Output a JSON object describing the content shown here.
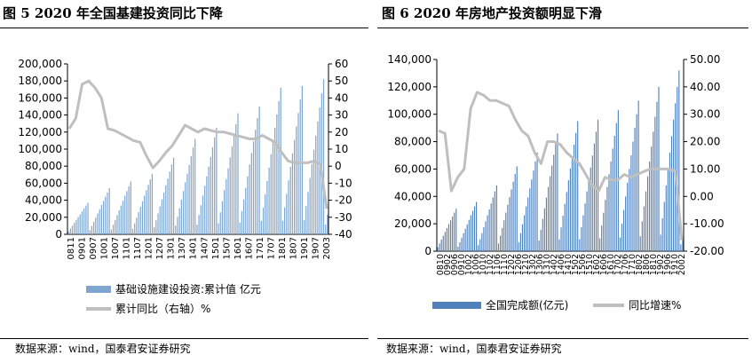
{
  "charts": {
    "left": {
      "title": "图 5 2020 年全国基建投资同比下降",
      "source": "数据来源：wind，国泰君安证券研究",
      "chart_data": {
        "type": "bar",
        "combo": "bar+line",
        "legend_position": "bottom-left",
        "grid": false,
        "y_left": {
          "ticks": [
            "200,000",
            "180,000",
            "160,000",
            "140,000",
            "120,000",
            "100,000",
            "80,000",
            "60,000",
            "40,000",
            "20,000",
            "0"
          ],
          "range": [
            0,
            200000
          ]
        },
        "y_right": {
          "ticks": [
            "60",
            "50",
            "40",
            "30",
            "20",
            "10",
            "0",
            "-10",
            "-20",
            "-30",
            "-40"
          ],
          "range": [
            -40,
            60
          ]
        },
        "x_ticks": [
          "0811",
          "0901",
          "0907",
          "1001",
          "1007",
          "1101",
          "1107",
          "1201",
          "1207",
          "1301",
          "1307",
          "1401",
          "1407",
          "1501",
          "1507",
          "1601",
          "1607",
          "1701",
          "1707",
          "1801",
          "1807",
          "1901",
          "1907",
          "2003"
        ],
        "series": [
          {
            "name": "基础设施建设投资:累计值 亿元",
            "kind": "bar",
            "axis": "left",
            "color": "#7EA6D0",
            "year_peaks": [
              37000,
              54000,
              62000,
              71000,
              90000,
              112000,
              125000,
              142000,
              150000,
              172000,
              174000,
              182000,
              23000
            ]
          },
          {
            "name": "累计同比（右轴）%",
            "kind": "line",
            "axis": "right",
            "color": "#BFBFBF",
            "values": [
              22,
              28,
              48,
              50,
              46,
              40,
              22,
              21,
              19,
              17,
              15,
              14,
              6,
              -1,
              3,
              8,
              12,
              18,
              24,
              22,
              20,
              22,
              21,
              20,
              20,
              19,
              18,
              17,
              16,
              16,
              18,
              16,
              14,
              8,
              3,
              2,
              2,
              2,
              3,
              1,
              -25
            ]
          }
        ]
      }
    },
    "right": {
      "title": "图 6   2020 年房地产投资额明显下滑",
      "source": "数据来源：wind，国泰君安证券研究",
      "chart_data": {
        "type": "bar",
        "combo": "bar+line",
        "legend_position": "bottom",
        "grid": false,
        "y_left": {
          "ticks": [
            "140,000",
            "120,000",
            "100,000",
            "80,000",
            "60,000",
            "40,000",
            "20,000",
            "0"
          ],
          "range": [
            0,
            140000
          ]
        },
        "y_right": {
          "ticks": [
            "50.00",
            "40.00",
            "30.00",
            "20.00",
            "10.00",
            "0.00",
            "-10.00",
            "-20.00"
          ],
          "range": [
            -20,
            50
          ]
        },
        "x_ticks": [
          "0810",
          "0902",
          "0906",
          "0910",
          "1002",
          "1006",
          "1010",
          "1102",
          "1106",
          "1110",
          "1202",
          "1206",
          "1210",
          "1302",
          "1306",
          "1310",
          "1402",
          "1406",
          "1410",
          "1502",
          "1506",
          "1510",
          "1602",
          "1606",
          "1610",
          "1702",
          "1706",
          "1710",
          "1802",
          "1806",
          "1810",
          "1902",
          "1906",
          "1910",
          "2002"
        ],
        "series": [
          {
            "name": "全国完成额(亿元)",
            "kind": "bar",
            "axis": "left",
            "color": "#4F81BD",
            "year_peaks": [
              31000,
              36000,
              48000,
              62000,
              72000,
              86000,
              95000,
              96000,
              103000,
              110000,
              120000,
              132000,
              10000
            ]
          },
          {
            "name": "同比增速%",
            "kind": "line",
            "axis": "right",
            "color": "#BFBFBF",
            "values": [
              24,
              23,
              2,
              7,
              10,
              32,
              38,
              37,
              35,
              35,
              34,
              33,
              28,
              24,
              22,
              16,
              12,
              20,
              20,
              19,
              16,
              14,
              12,
              8,
              4,
              2,
              7,
              6,
              6,
              8,
              7,
              8,
              9,
              10,
              10,
              10,
              10,
              9,
              -16
            ]
          }
        ]
      }
    }
  }
}
